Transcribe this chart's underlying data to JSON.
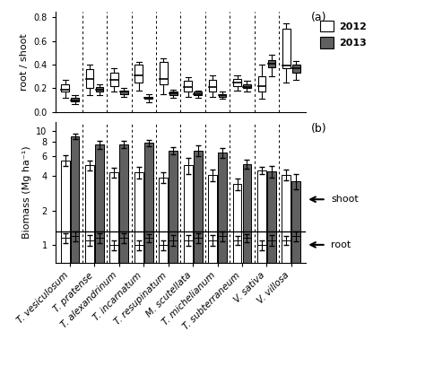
{
  "species": [
    "T. vesiculosum",
    "T. pratense",
    "T. alexandrinum",
    "T. incarnatum",
    "T. resupinatum",
    "M. scutellata",
    "T. michelianum",
    "T. subterraneum",
    "V. sativa",
    "V. villosa"
  ],
  "panel_a_label": "(a)",
  "panel_b_label": "(b)",
  "ylabel_a": "root / shoot",
  "ylabel_b": "Biomass (Mg ha⁻¹)",
  "legend_2012": "2012",
  "legend_2013": "2013",
  "color_2012": "#ffffff",
  "color_2013": "#606060",
  "shoot_label": "shoot",
  "root_label": "root",
  "hline_y": 1.3,
  "boxplot_a": {
    "2012": [
      {
        "whislo": 0.12,
        "q1": 0.17,
        "med": 0.19,
        "q3": 0.23,
        "whishi": 0.27
      },
      {
        "whislo": 0.14,
        "q1": 0.2,
        "med": 0.28,
        "q3": 0.36,
        "whishi": 0.4
      },
      {
        "whislo": 0.17,
        "q1": 0.22,
        "med": 0.27,
        "q3": 0.33,
        "whishi": 0.37
      },
      {
        "whislo": 0.18,
        "q1": 0.25,
        "med": 0.31,
        "q3": 0.4,
        "whishi": 0.42
      },
      {
        "whislo": 0.15,
        "q1": 0.23,
        "med": 0.28,
        "q3": 0.42,
        "whishi": 0.45
      },
      {
        "whislo": 0.13,
        "q1": 0.17,
        "med": 0.21,
        "q3": 0.26,
        "whishi": 0.29
      },
      {
        "whislo": 0.13,
        "q1": 0.17,
        "med": 0.21,
        "q3": 0.27,
        "whishi": 0.31
      },
      {
        "whislo": 0.18,
        "q1": 0.22,
        "med": 0.25,
        "q3": 0.28,
        "whishi": 0.31
      },
      {
        "whislo": 0.11,
        "q1": 0.17,
        "med": 0.22,
        "q3": 0.3,
        "whishi": 0.4
      },
      {
        "whislo": 0.25,
        "q1": 0.37,
        "med": 0.39,
        "q3": 0.7,
        "whishi": 0.75
      }
    ],
    "2013": [
      {
        "whislo": 0.07,
        "q1": 0.09,
        "med": 0.1,
        "q3": 0.12,
        "whishi": 0.14
      },
      {
        "whislo": 0.14,
        "q1": 0.17,
        "med": 0.19,
        "q3": 0.21,
        "whishi": 0.23
      },
      {
        "whislo": 0.13,
        "q1": 0.15,
        "med": 0.17,
        "q3": 0.18,
        "whishi": 0.2
      },
      {
        "whislo": 0.08,
        "q1": 0.11,
        "med": 0.12,
        "q3": 0.13,
        "whishi": 0.15
      },
      {
        "whislo": 0.12,
        "q1": 0.14,
        "med": 0.16,
        "q3": 0.17,
        "whishi": 0.19
      },
      {
        "whislo": 0.12,
        "q1": 0.14,
        "med": 0.15,
        "q3": 0.17,
        "whishi": 0.18
      },
      {
        "whislo": 0.11,
        "q1": 0.13,
        "med": 0.14,
        "q3": 0.15,
        "whishi": 0.17
      },
      {
        "whislo": 0.17,
        "q1": 0.2,
        "med": 0.21,
        "q3": 0.23,
        "whishi": 0.26
      },
      {
        "whislo": 0.3,
        "q1": 0.38,
        "med": 0.41,
        "q3": 0.44,
        "whishi": 0.48
      },
      {
        "whislo": 0.27,
        "q1": 0.33,
        "med": 0.37,
        "q3": 0.4,
        "whishi": 0.43
      }
    ]
  },
  "bar_b": {
    "shoot_2012": [
      5.5,
      5.0,
      4.3,
      4.3,
      3.9,
      5.0,
      4.1,
      3.4,
      4.5,
      4.1
    ],
    "shoot_2013": [
      8.9,
      7.5,
      7.6,
      7.8,
      6.7,
      6.7,
      6.4,
      5.1,
      4.4,
      3.6
    ],
    "root_2012": [
      1.15,
      1.1,
      1.0,
      1.0,
      1.0,
      1.1,
      1.1,
      1.1,
      1.0,
      1.1
    ],
    "root_2013": [
      1.2,
      1.15,
      1.15,
      1.15,
      1.1,
      1.15,
      1.2,
      1.15,
      1.1,
      1.2
    ],
    "shoot_err_2012": [
      0.6,
      0.5,
      0.4,
      0.5,
      0.45,
      0.8,
      0.5,
      0.4,
      0.35,
      0.45
    ],
    "shoot_err_2013": [
      0.5,
      0.6,
      0.6,
      0.5,
      0.5,
      0.7,
      0.6,
      0.45,
      0.5,
      0.55
    ],
    "root_err_2012": [
      0.12,
      0.12,
      0.1,
      0.1,
      0.1,
      0.12,
      0.12,
      0.1,
      0.1,
      0.1
    ],
    "root_err_2013": [
      0.12,
      0.12,
      0.12,
      0.1,
      0.12,
      0.12,
      0.12,
      0.1,
      0.12,
      0.12
    ]
  }
}
